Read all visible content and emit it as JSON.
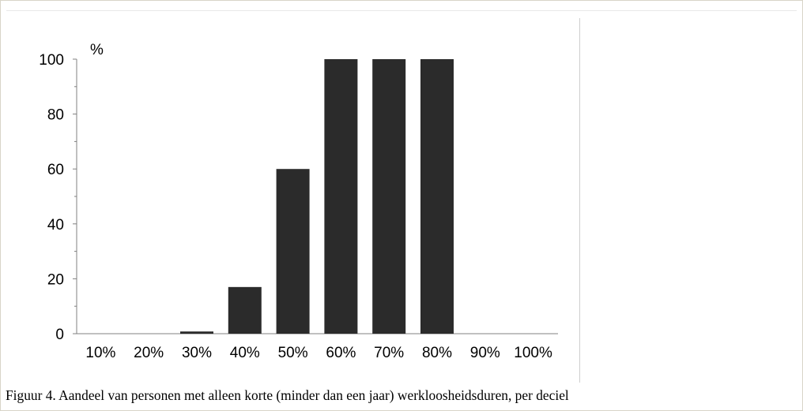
{
  "chart_data": {
    "type": "bar",
    "categories": [
      "10%",
      "20%",
      "30%",
      "40%",
      "50%",
      "60%",
      "70%",
      "80%",
      "90%",
      "100%"
    ],
    "values": [
      0,
      0,
      0.8,
      17,
      60,
      100,
      100,
      100,
      0,
      0
    ],
    "ylabel": "%",
    "ylim": [
      0,
      100
    ],
    "yticks": [
      "0",
      "20",
      "40",
      "60",
      "80",
      "100"
    ],
    "grid": false,
    "bar_color": "#2b2b2b"
  },
  "caption": "Figuur 4. Aandeel van personen met alleen korte (minder dan een jaar) werkloosheidsduren, per deciel"
}
